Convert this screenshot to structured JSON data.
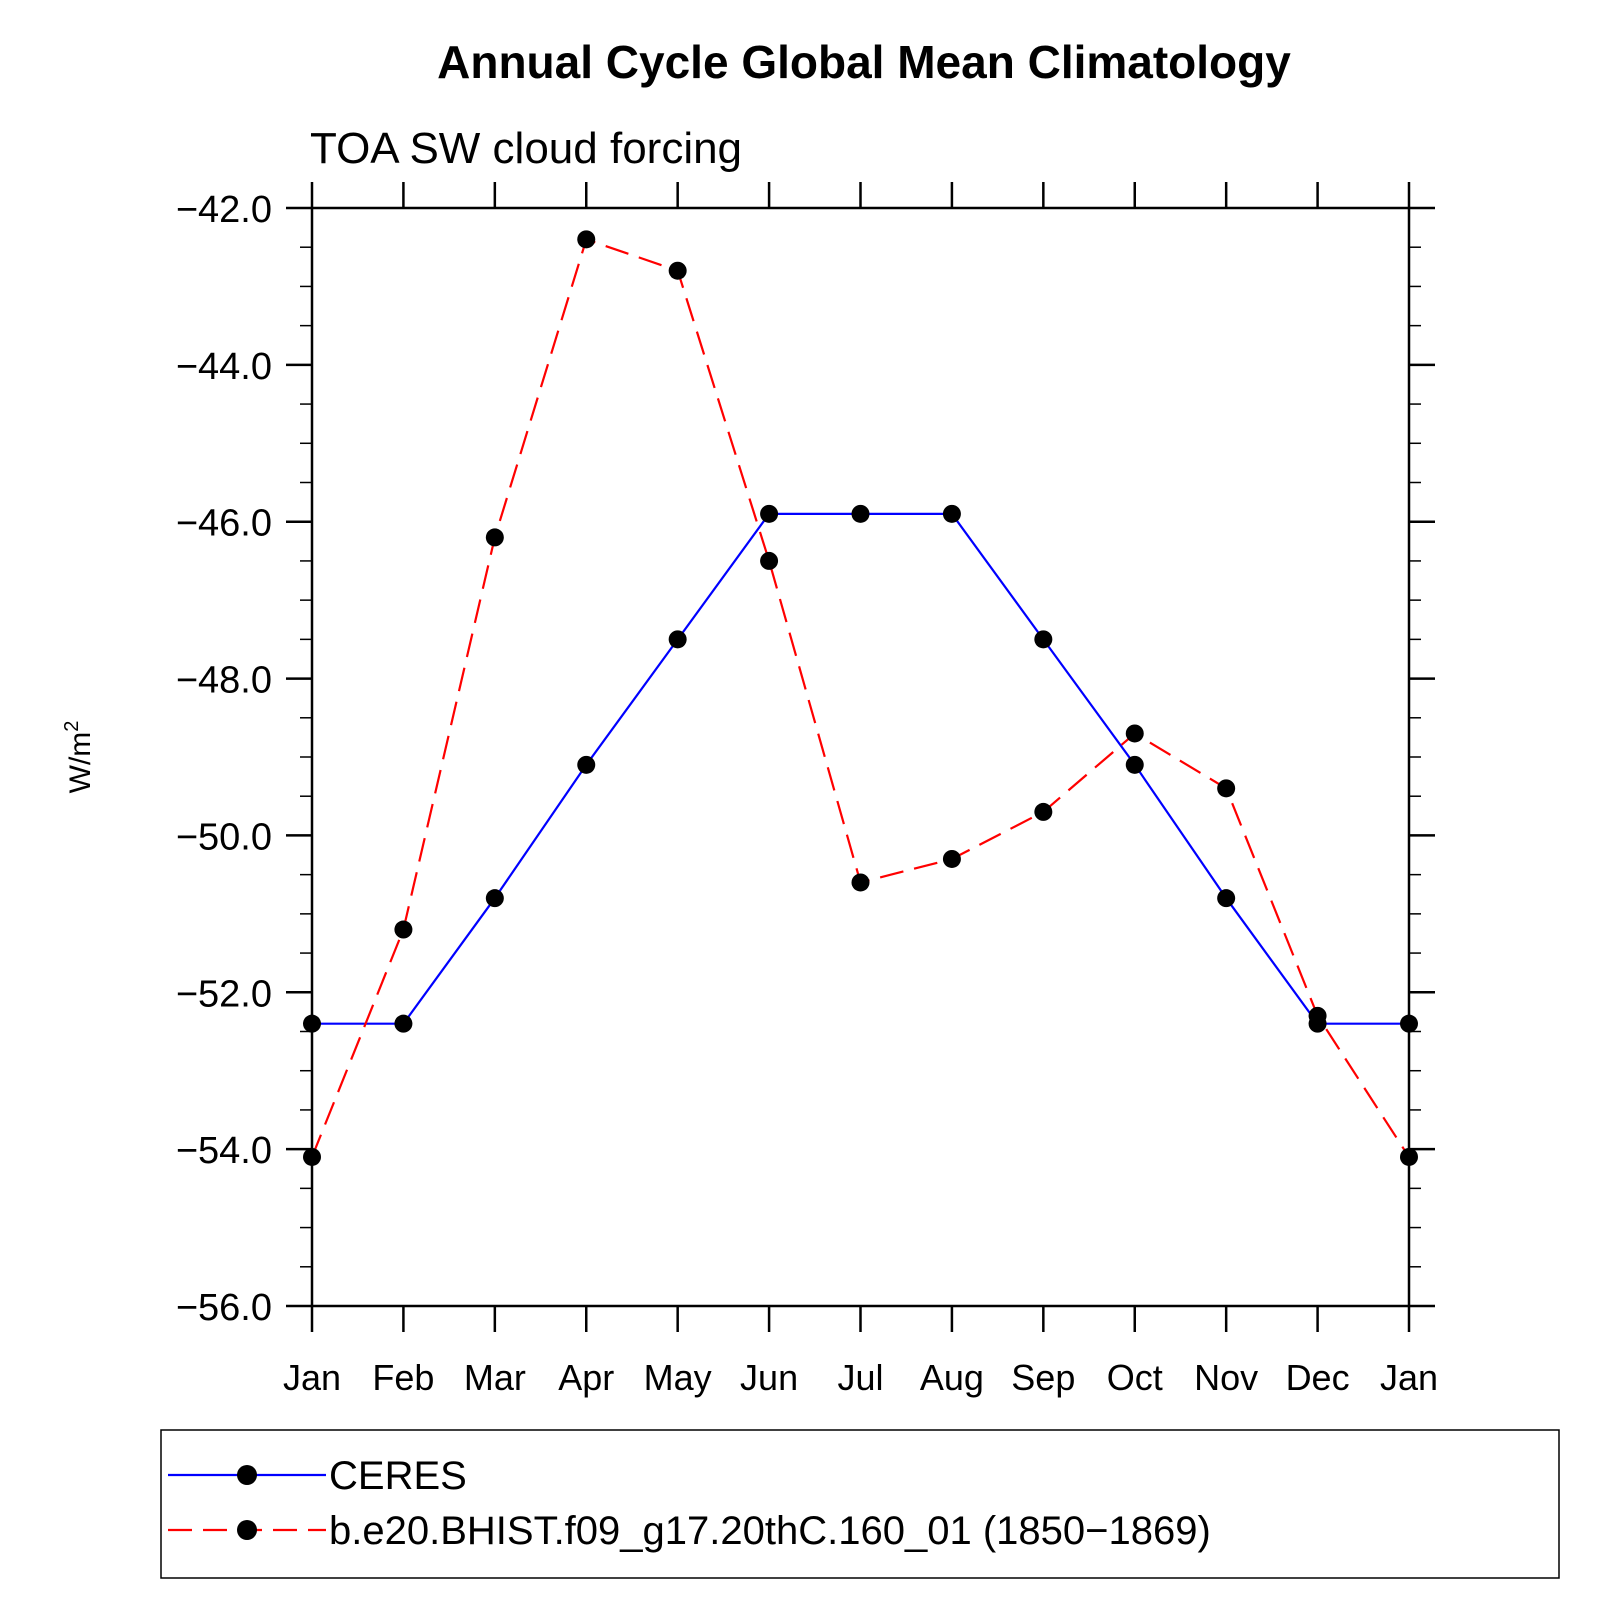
{
  "chart_data": {
    "type": "line",
    "title": "Annual Cycle Global Mean Climatology",
    "subtitle": "TOA SW cloud forcing",
    "ylabel": "W/m",
    "ylabel_superscript": "2",
    "ylim": [
      -56.0,
      -42.0
    ],
    "yticks": [
      "-42.0",
      "-44.0",
      "-46.0",
      "-48.0",
      "-50.0",
      "-52.0",
      "-54.0",
      "-56.0"
    ],
    "ytick_values": [
      -42.0,
      -44.0,
      -46.0,
      -48.0,
      -50.0,
      -52.0,
      -54.0,
      -56.0
    ],
    "categories": [
      "Jan",
      "Feb",
      "Mar",
      "Apr",
      "May",
      "Jun",
      "Jul",
      "Aug",
      "Sep",
      "Oct",
      "Nov",
      "Dec",
      "Jan"
    ],
    "grid": false,
    "legend_position": "bottom",
    "series": [
      {
        "name": "CERES",
        "color": "#0000ff",
        "style": "solid",
        "marker": "circle",
        "values": [
          -52.4,
          -52.4,
          -50.8,
          -49.1,
          -47.5,
          -45.9,
          -45.9,
          -45.9,
          -47.5,
          -49.1,
          -50.8,
          -52.4,
          -52.4
        ]
      },
      {
        "name": "b.e20.BHIST.f09_g17.20thC.160_01 (1850−1869)",
        "color": "#ff0000",
        "style": "dashed",
        "marker": "circle",
        "values": [
          -54.1,
          -51.2,
          -46.2,
          -42.4,
          -42.8,
          -46.5,
          -50.6,
          -50.3,
          -49.7,
          -48.7,
          -49.4,
          -52.3,
          -54.1
        ]
      }
    ]
  }
}
